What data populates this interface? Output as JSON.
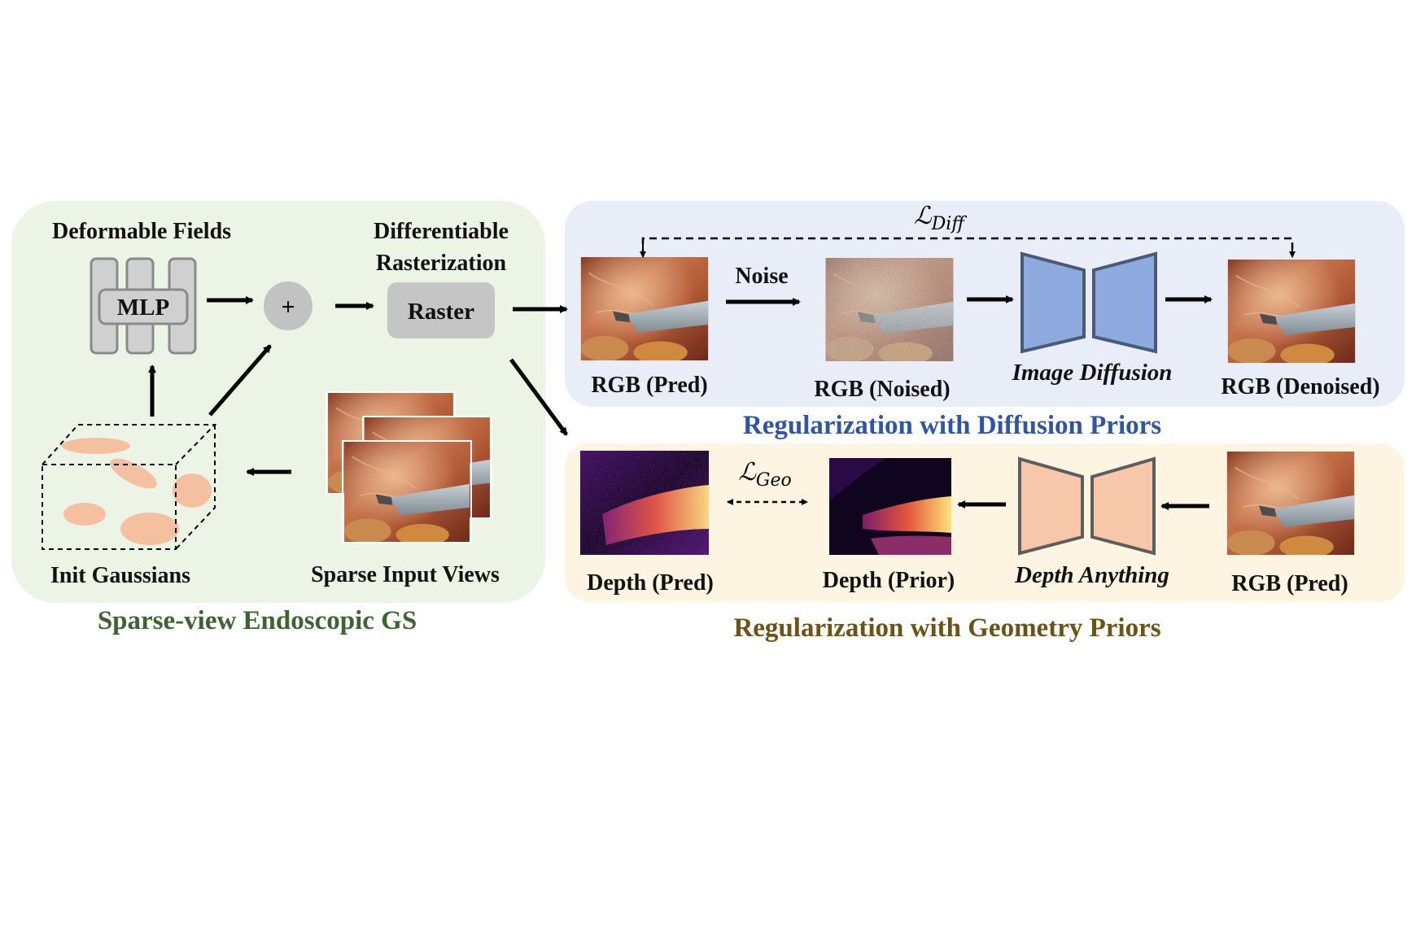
{
  "colors": {
    "green_panel": "#ecf4e6",
    "blue_panel": "#e8edf7",
    "yellow_panel": "#fdf4e2",
    "green_title": "#3d6330",
    "blue_title": "#2f55a4",
    "yellow_title": "#6b5314",
    "diffusion_block": "#8eaadf",
    "depth_block": "#f6c7a8",
    "gaussian_blob": "#f5c0a0",
    "mlp_gray": "#d0d0d0",
    "raster_gray": "#c5c5c5"
  },
  "left_panel": {
    "deformable_fields": "Deformable Fields",
    "mlp": "MLP",
    "plus": "+",
    "diff_raster_line1": "Differentiable",
    "diff_raster_line2": "Rasterization",
    "raster": "Raster",
    "init_gaussians": "Init Gaussians",
    "sparse_input_views": "Sparse Input Views",
    "title": "Sparse-view Endoscopic GS"
  },
  "diffusion_panel": {
    "loss_base": "ℒ",
    "loss_sub": "Diff",
    "noise": "Noise",
    "rgb_pred": "RGB (Pred)",
    "rgb_noised": "RGB (Noised)",
    "image_diffusion": "Image Diffusion",
    "rgb_denoised": "RGB (Denoised)",
    "title": "Regularization with Diffusion Priors"
  },
  "geometry_panel": {
    "loss_base": "ℒ",
    "loss_sub": "Geo",
    "depth_pred": "Depth (Pred)",
    "depth_prior": "Depth (Prior)",
    "depth_anything": "Depth Anything",
    "rgb_pred": "RGB (Pred)",
    "title": "Regularization with Geometry Priors"
  }
}
